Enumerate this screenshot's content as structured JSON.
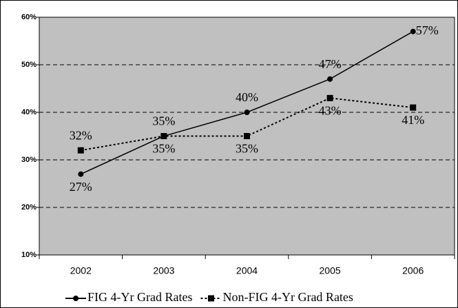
{
  "chart_data": {
    "type": "line",
    "categories": [
      "2002",
      "2003",
      "2004",
      "2005",
      "2006"
    ],
    "series": [
      {
        "name": "FIG 4-Yr Grad Rates",
        "color": "#000000",
        "line_style": "solid",
        "marker": "circle",
        "values": [
          27,
          35,
          40,
          47,
          57
        ],
        "value_labels": [
          "27%",
          "35%",
          "40%",
          "47%",
          "57%"
        ]
      },
      {
        "name": "Non-FIG 4-Yr Grad Rates",
        "color": "#000000",
        "line_style": "dotted",
        "marker": "square",
        "values": [
          32,
          35,
          35,
          43,
          41
        ],
        "value_labels": [
          "32%",
          "35%",
          "35%",
          "43%",
          "41%"
        ]
      }
    ],
    "ylim": [
      10,
      60
    ],
    "yticks": [
      {
        "value": 10,
        "label": "10%"
      },
      {
        "value": 20,
        "label": "20%"
      },
      {
        "value": 30,
        "label": "30%"
      },
      {
        "value": 40,
        "label": "40%"
      },
      {
        "value": 50,
        "label": "50%"
      },
      {
        "value": 60,
        "label": "60%"
      }
    ],
    "grid": true,
    "plot_background": "#c0c0c0",
    "legend_position": "bottom"
  }
}
